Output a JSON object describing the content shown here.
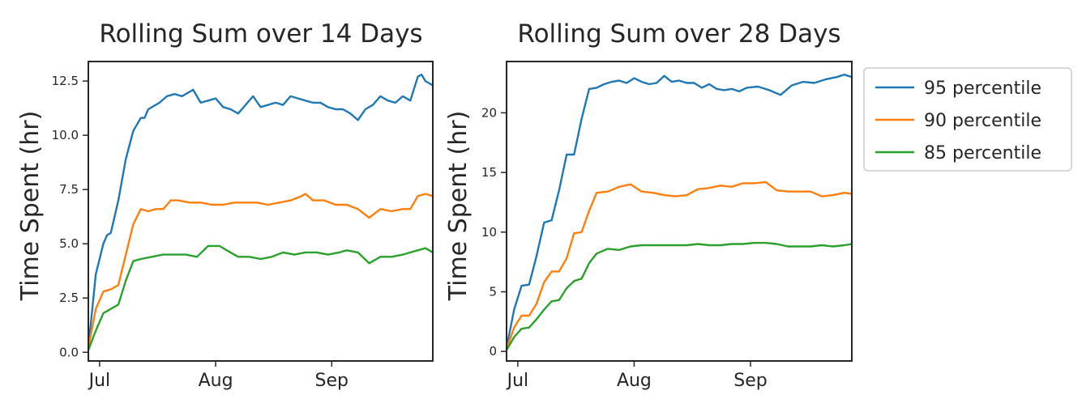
{
  "chart_data": [
    {
      "type": "line",
      "title": "Rolling Sum over 14 Days",
      "xlabel": "",
      "ylabel": "Time Spent (hr)",
      "xlim": [
        "2020-06-28",
        "2020-09-28"
      ],
      "ylim": [
        -0.4,
        13.4
      ],
      "yticks": [
        0.0,
        2.5,
        5.0,
        7.5,
        10.0,
        12.5
      ],
      "ytick_labels": [
        "0.0",
        "2.5",
        "5.0",
        "7.5",
        "10.0",
        "12.5"
      ],
      "xticks": [
        "2020-07-01",
        "2020-08-01",
        "2020-09-01"
      ],
      "xtick_labels": [
        "Jul",
        "Aug",
        "Sep"
      ],
      "grid": false,
      "legend": "none",
      "series": [
        {
          "name": "95 percentile",
          "color": "#1f77b4",
          "x": [
            "2020-06-28",
            "2020-06-30",
            "2020-07-02",
            "2020-07-03",
            "2020-07-04",
            "2020-07-06",
            "2020-07-08",
            "2020-07-10",
            "2020-07-12",
            "2020-07-13",
            "2020-07-14",
            "2020-07-16",
            "2020-07-17",
            "2020-07-19",
            "2020-07-21",
            "2020-07-23",
            "2020-07-26",
            "2020-07-28",
            "2020-07-30",
            "2020-08-01",
            "2020-08-03",
            "2020-08-05",
            "2020-08-07",
            "2020-08-09",
            "2020-08-11",
            "2020-08-13",
            "2020-08-15",
            "2020-08-17",
            "2020-08-19",
            "2020-08-21",
            "2020-08-23",
            "2020-08-25",
            "2020-08-27",
            "2020-08-29",
            "2020-08-31",
            "2020-09-02",
            "2020-09-04",
            "2020-09-06",
            "2020-09-08",
            "2020-09-10",
            "2020-09-12",
            "2020-09-14",
            "2020-09-16",
            "2020-09-18",
            "2020-09-20",
            "2020-09-22",
            "2020-09-24",
            "2020-09-25",
            "2020-09-26",
            "2020-09-28"
          ],
          "y": [
            0.2,
            3.6,
            5.0,
            5.4,
            5.5,
            7.0,
            8.9,
            10.2,
            10.8,
            10.8,
            11.2,
            11.4,
            11.5,
            11.8,
            11.9,
            11.8,
            12.1,
            11.5,
            11.6,
            11.7,
            11.3,
            11.2,
            11.0,
            11.4,
            11.8,
            11.3,
            11.4,
            11.5,
            11.4,
            11.8,
            11.7,
            11.6,
            11.5,
            11.5,
            11.3,
            11.2,
            11.2,
            11.0,
            10.7,
            11.2,
            11.4,
            11.8,
            11.6,
            11.5,
            11.8,
            11.6,
            12.7,
            12.8,
            12.5,
            12.3
          ]
        },
        {
          "name": "90 percentile",
          "color": "#ff7f0e",
          "x": [
            "2020-06-28",
            "2020-06-30",
            "2020-07-02",
            "2020-07-04",
            "2020-07-06",
            "2020-07-08",
            "2020-07-10",
            "2020-07-12",
            "2020-07-14",
            "2020-07-16",
            "2020-07-18",
            "2020-07-20",
            "2020-07-22",
            "2020-07-25",
            "2020-07-28",
            "2020-07-31",
            "2020-08-03",
            "2020-08-06",
            "2020-08-09",
            "2020-08-12",
            "2020-08-15",
            "2020-08-18",
            "2020-08-21",
            "2020-08-24",
            "2020-08-25",
            "2020-08-27",
            "2020-08-30",
            "2020-09-02",
            "2020-09-05",
            "2020-09-08",
            "2020-09-11",
            "2020-09-14",
            "2020-09-17",
            "2020-09-20",
            "2020-09-22",
            "2020-09-24",
            "2020-09-26",
            "2020-09-28"
          ],
          "y": [
            0.2,
            2.0,
            2.8,
            2.9,
            3.1,
            4.5,
            5.9,
            6.6,
            6.5,
            6.6,
            6.6,
            7.0,
            7.0,
            6.9,
            6.9,
            6.8,
            6.8,
            6.9,
            6.9,
            6.9,
            6.8,
            6.9,
            7.0,
            7.2,
            7.3,
            7.0,
            7.0,
            6.8,
            6.8,
            6.6,
            6.2,
            6.6,
            6.5,
            6.6,
            6.6,
            7.2,
            7.3,
            7.2
          ]
        },
        {
          "name": "85 percentile",
          "color": "#2ca02c",
          "x": [
            "2020-06-28",
            "2020-06-30",
            "2020-07-02",
            "2020-07-04",
            "2020-07-06",
            "2020-07-08",
            "2020-07-10",
            "2020-07-12",
            "2020-07-15",
            "2020-07-18",
            "2020-07-21",
            "2020-07-24",
            "2020-07-27",
            "2020-07-30",
            "2020-08-02",
            "2020-08-04",
            "2020-08-07",
            "2020-08-10",
            "2020-08-13",
            "2020-08-16",
            "2020-08-19",
            "2020-08-22",
            "2020-08-25",
            "2020-08-28",
            "2020-08-31",
            "2020-09-03",
            "2020-09-05",
            "2020-09-08",
            "2020-09-11",
            "2020-09-14",
            "2020-09-17",
            "2020-09-20",
            "2020-09-22",
            "2020-09-24",
            "2020-09-26",
            "2020-09-28"
          ],
          "y": [
            0.1,
            1.0,
            1.8,
            2.0,
            2.2,
            3.3,
            4.2,
            4.3,
            4.4,
            4.5,
            4.5,
            4.5,
            4.4,
            4.9,
            4.9,
            4.7,
            4.4,
            4.4,
            4.3,
            4.4,
            4.6,
            4.5,
            4.6,
            4.6,
            4.5,
            4.6,
            4.7,
            4.6,
            4.1,
            4.4,
            4.4,
            4.5,
            4.6,
            4.7,
            4.8,
            4.6
          ]
        }
      ]
    },
    {
      "type": "line",
      "title": "Rolling Sum over 28 Days",
      "xlabel": "",
      "ylabel": "Time Spent (hr)",
      "xlim": [
        "2020-06-28",
        "2020-09-28"
      ],
      "ylim": [
        -0.8,
        24.3
      ],
      "yticks": [
        0,
        5,
        10,
        15,
        20
      ],
      "ytick_labels": [
        "0",
        "5",
        "10",
        "15",
        "20"
      ],
      "xticks": [
        "2020-07-01",
        "2020-08-01",
        "2020-09-01"
      ],
      "xtick_labels": [
        "Jul",
        "Aug",
        "Sep"
      ],
      "grid": false,
      "legend": "outside-right",
      "series": [
        {
          "name": "95 percentile",
          "color": "#1f77b4",
          "x": [
            "2020-06-28",
            "2020-06-30",
            "2020-07-02",
            "2020-07-04",
            "2020-07-06",
            "2020-07-08",
            "2020-07-10",
            "2020-07-12",
            "2020-07-14",
            "2020-07-16",
            "2020-07-18",
            "2020-07-20",
            "2020-07-22",
            "2020-07-24",
            "2020-07-26",
            "2020-07-28",
            "2020-07-30",
            "2020-08-01",
            "2020-08-03",
            "2020-08-05",
            "2020-08-07",
            "2020-08-09",
            "2020-08-11",
            "2020-08-13",
            "2020-08-15",
            "2020-08-17",
            "2020-08-19",
            "2020-08-21",
            "2020-08-23",
            "2020-08-25",
            "2020-08-27",
            "2020-08-29",
            "2020-08-31",
            "2020-09-03",
            "2020-09-06",
            "2020-09-09",
            "2020-09-12",
            "2020-09-15",
            "2020-09-18",
            "2020-09-21",
            "2020-09-24",
            "2020-09-26",
            "2020-09-28"
          ],
          "y": [
            0.3,
            3.5,
            5.5,
            5.6,
            8.0,
            10.8,
            11.0,
            13.5,
            16.5,
            16.5,
            19.5,
            22.0,
            22.1,
            22.4,
            22.6,
            22.7,
            22.5,
            22.9,
            22.6,
            22.4,
            22.5,
            23.1,
            22.6,
            22.7,
            22.5,
            22.5,
            22.1,
            22.4,
            22.0,
            21.9,
            22.0,
            21.8,
            22.1,
            22.2,
            21.9,
            21.5,
            22.3,
            22.6,
            22.5,
            22.8,
            23.0,
            23.2,
            23.0
          ]
        },
        {
          "name": "90 percentile",
          "color": "#ff7f0e",
          "x": [
            "2020-06-28",
            "2020-06-30",
            "2020-07-02",
            "2020-07-04",
            "2020-07-06",
            "2020-07-08",
            "2020-07-10",
            "2020-07-12",
            "2020-07-14",
            "2020-07-16",
            "2020-07-18",
            "2020-07-20",
            "2020-07-22",
            "2020-07-25",
            "2020-07-28",
            "2020-07-31",
            "2020-08-03",
            "2020-08-06",
            "2020-08-09",
            "2020-08-12",
            "2020-08-15",
            "2020-08-18",
            "2020-08-21",
            "2020-08-24",
            "2020-08-27",
            "2020-08-30",
            "2020-09-02",
            "2020-09-05",
            "2020-09-08",
            "2020-09-11",
            "2020-09-14",
            "2020-09-17",
            "2020-09-20",
            "2020-09-23",
            "2020-09-26",
            "2020-09-28"
          ],
          "y": [
            0.2,
            2.0,
            3.0,
            3.0,
            4.0,
            5.8,
            6.7,
            6.7,
            7.8,
            9.9,
            10.0,
            11.8,
            13.3,
            13.4,
            13.8,
            14.0,
            13.4,
            13.3,
            13.1,
            13.0,
            13.1,
            13.6,
            13.7,
            13.9,
            13.8,
            14.1,
            14.1,
            14.2,
            13.5,
            13.4,
            13.4,
            13.4,
            13.0,
            13.1,
            13.3,
            13.2
          ]
        },
        {
          "name": "85 percentile",
          "color": "#2ca02c",
          "x": [
            "2020-06-28",
            "2020-06-30",
            "2020-07-02",
            "2020-07-04",
            "2020-07-06",
            "2020-07-08",
            "2020-07-10",
            "2020-07-12",
            "2020-07-14",
            "2020-07-16",
            "2020-07-18",
            "2020-07-20",
            "2020-07-22",
            "2020-07-25",
            "2020-07-28",
            "2020-07-31",
            "2020-08-03",
            "2020-08-06",
            "2020-08-09",
            "2020-08-12",
            "2020-08-15",
            "2020-08-18",
            "2020-08-21",
            "2020-08-24",
            "2020-08-27",
            "2020-08-30",
            "2020-09-02",
            "2020-09-05",
            "2020-09-08",
            "2020-09-11",
            "2020-09-14",
            "2020-09-17",
            "2020-09-20",
            "2020-09-23",
            "2020-09-26",
            "2020-09-28"
          ],
          "y": [
            0.1,
            1.2,
            1.9,
            2.0,
            2.7,
            3.5,
            4.2,
            4.3,
            5.3,
            5.9,
            6.1,
            7.4,
            8.2,
            8.6,
            8.5,
            8.8,
            8.9,
            8.9,
            8.9,
            8.9,
            8.9,
            9.0,
            8.9,
            8.9,
            9.0,
            9.0,
            9.1,
            9.1,
            9.0,
            8.8,
            8.8,
            8.8,
            8.9,
            8.8,
            8.9,
            9.0
          ]
        }
      ]
    }
  ]
}
